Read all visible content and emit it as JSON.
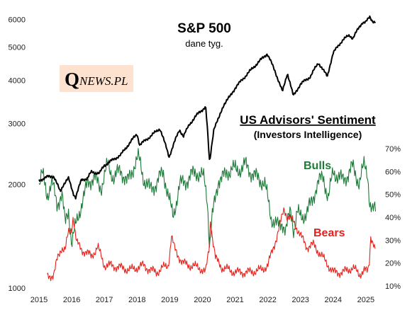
{
  "chart_data": {
    "type": "line",
    "title": "S&P 500",
    "subtitle": "dane tyg.",
    "sentiment_title": "US Advisors' Sentiment",
    "sentiment_subtitle": "(Investors Intelligence)",
    "logo": {
      "letter": "Q",
      "text": "NEWS.PL"
    },
    "x_ticks": [
      "2015",
      "2016",
      "2017",
      "2018",
      "2019",
      "2020",
      "2021",
      "2022",
      "2023",
      "2024",
      "2025"
    ],
    "xlim": [
      2015.0,
      2025.35
    ],
    "left_axis": {
      "scale": "log",
      "ylim": [
        1000,
        6400
      ],
      "ticks": [
        1000,
        2000,
        3000,
        4000,
        5000,
        6000
      ]
    },
    "right_axis": {
      "scale": "linear",
      "ylim": [
        10,
        70
      ],
      "ticks": [
        "10%",
        "20%",
        "30%",
        "40%",
        "50%",
        "60%",
        "70%"
      ]
    },
    "colors": {
      "sp500": "#000000",
      "bulls": "#1f7a3a",
      "bears": "#e8201a",
      "logo_bg": "#fde3cf"
    },
    "series": [
      {
        "name": "S&P 500",
        "axis": "left",
        "x": [
          2015.0,
          2015.25,
          2015.45,
          2015.65,
          2015.75,
          2015.9,
          2016.05,
          2016.12,
          2016.3,
          2016.48,
          2016.6,
          2016.85,
          2017.0,
          2017.5,
          2018.0,
          2018.08,
          2018.3,
          2018.7,
          2018.98,
          2019.3,
          2019.42,
          2019.6,
          2019.9,
          2020.1,
          2020.2,
          2020.22,
          2020.35,
          2020.5,
          2020.65,
          2020.85,
          2021.0,
          2021.5,
          2021.98,
          2022.2,
          2022.45,
          2022.6,
          2022.78,
          2023.0,
          2023.3,
          2023.55,
          2023.82,
          2024.0,
          2024.3,
          2024.5,
          2024.6,
          2024.9,
          2025.0,
          2025.12,
          2025.2,
          2025.3
        ],
        "values": [
          2050,
          2100,
          2110,
          1900,
          2000,
          2080,
          1880,
          1830,
          2060,
          2080,
          2170,
          2150,
          2270,
          2430,
          2800,
          2600,
          2700,
          2900,
          2400,
          2880,
          2750,
          2980,
          3230,
          3350,
          2450,
          2300,
          2900,
          3100,
          3400,
          3600,
          3800,
          4300,
          4780,
          4300,
          3700,
          4200,
          3600,
          3900,
          4100,
          4500,
          4100,
          4800,
          5250,
          5400,
          5300,
          5900,
          5900,
          6100,
          5950,
          5900
        ]
      },
      {
        "name": "Bulls",
        "axis": "right",
        "x": [
          2015.0,
          2015.1,
          2015.25,
          2015.4,
          2015.55,
          2015.7,
          2015.8,
          2015.9,
          2016.0,
          2016.1,
          2016.2,
          2016.4,
          2016.5,
          2016.7,
          2016.9,
          2017.1,
          2017.3,
          2017.5,
          2017.7,
          2017.95,
          2018.05,
          2018.2,
          2018.4,
          2018.6,
          2018.8,
          2018.92,
          2018.98,
          2019.1,
          2019.3,
          2019.5,
          2019.8,
          2020.05,
          2020.15,
          2020.22,
          2020.3,
          2020.5,
          2020.7,
          2020.9,
          2021.05,
          2021.3,
          2021.6,
          2021.9,
          2022.0,
          2022.1,
          2022.3,
          2022.45,
          2022.55,
          2022.7,
          2022.8,
          2022.9,
          2023.0,
          2023.2,
          2023.35,
          2023.5,
          2023.7,
          2023.85,
          2024.0,
          2024.3,
          2024.6,
          2024.8,
          2024.95,
          2025.05,
          2025.12,
          2025.2,
          2025.3
        ],
        "values": [
          54,
          59,
          50,
          55,
          46,
          50,
          37,
          44,
          28,
          35,
          41,
          50,
          56,
          57,
          53,
          63,
          57,
          61,
          55,
          64,
          66,
          57,
          52,
          55,
          60,
          52,
          48,
          40,
          54,
          56,
          60,
          57,
          48,
          27,
          40,
          57,
          58,
          62,
          60,
          63,
          58,
          55,
          48,
          40,
          36,
          38,
          34,
          43,
          34,
          42,
          40,
          42,
          47,
          54,
          58,
          48,
          60,
          56,
          62,
          55,
          63,
          60,
          46,
          42,
          44
        ]
      },
      {
        "name": "Bears",
        "axis": "right",
        "x": [
          2015.25,
          2015.45,
          2015.55,
          2015.7,
          2015.8,
          2015.9,
          2016.0,
          2016.05,
          2016.1,
          2016.15,
          2016.3,
          2016.5,
          2016.6,
          2016.8,
          2017.0,
          2017.2,
          2017.5,
          2017.8,
          2018.0,
          2018.2,
          2018.4,
          2018.6,
          2018.8,
          2018.95,
          2019.0,
          2019.05,
          2019.15,
          2019.4,
          2019.6,
          2019.9,
          2020.1,
          2020.2,
          2020.25,
          2020.3,
          2020.4,
          2020.6,
          2021.0,
          2021.4,
          2021.8,
          2022.0,
          2022.2,
          2022.4,
          2022.5,
          2022.6,
          2022.8,
          2023.0,
          2023.2,
          2023.4,
          2023.6,
          2023.8,
          2024.0,
          2024.3,
          2024.6,
          2024.8,
          2024.95,
          2025.05,
          2025.1,
          2025.15,
          2025.25,
          2025.3
        ],
        "values": [
          14,
          15,
          21,
          27,
          26,
          33,
          35,
          41,
          34,
          29,
          26,
          24,
          23,
          27,
          19,
          19,
          18,
          17,
          18,
          19,
          17,
          16,
          18,
          19,
          24,
          32,
          26,
          20,
          19,
          18,
          16,
          26,
          40,
          32,
          22,
          18,
          16,
          16,
          17,
          19,
          28,
          38,
          44,
          40,
          38,
          32,
          27,
          28,
          24,
          20,
          16,
          16,
          18,
          15,
          17,
          16,
          19,
          32,
          28,
          24
        ]
      }
    ]
  }
}
